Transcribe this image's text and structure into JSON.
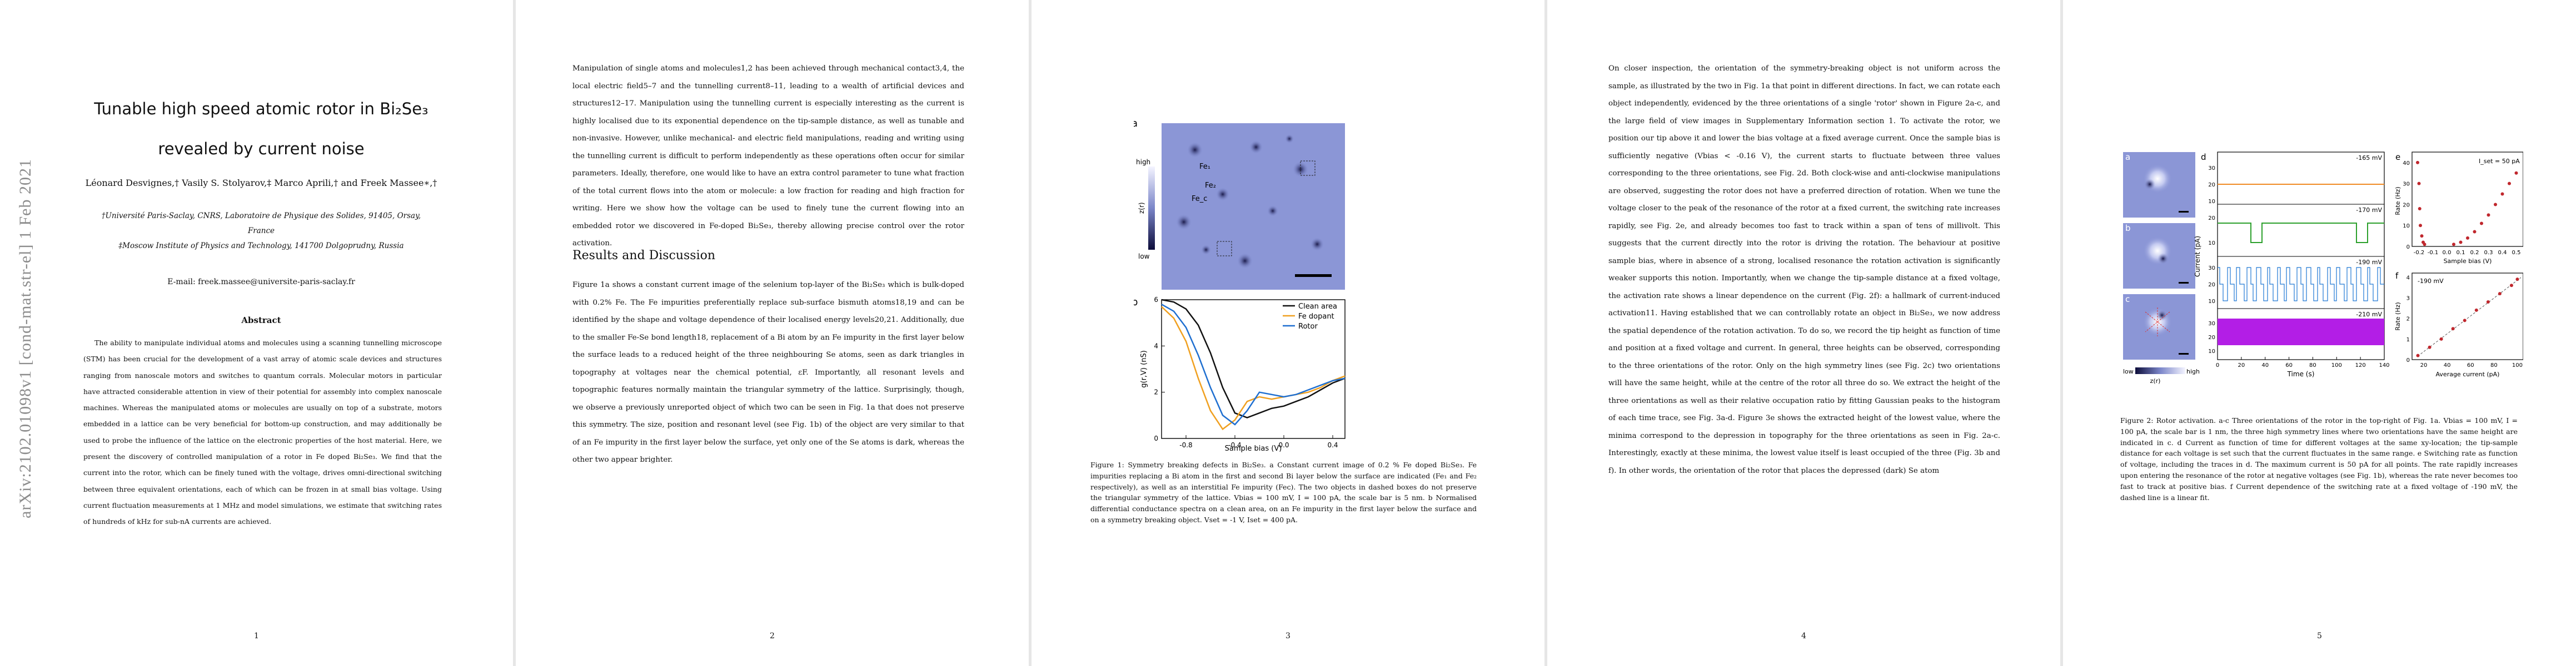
{
  "pages": [
    {
      "number": "1"
    },
    {
      "number": "2"
    },
    {
      "number": "3"
    },
    {
      "number": "4"
    },
    {
      "number": "5"
    }
  ],
  "arxiv_stamp": "arXiv:2102.01098v1  [cond-mat.str-el]  1 Feb 2021",
  "title_line1": "Tunable high speed atomic rotor in Bi₂Se₃",
  "title_line2": "revealed by current noise",
  "authors": "Léonard Desvignes,† Vasily S. Stolyarov,‡ Marco Aprili,† and Freek Massee∗,†",
  "affiliations": [
    "†Université Paris-Saclay, CNRS, Laboratoire de Physique des Solides, 91405, Orsay,",
    "France",
    "‡Moscow Institute of Physics and Technology, 141700 Dolgoprudny, Russia"
  ],
  "email": "E-mail: freek.massee@universite-paris-saclay.fr",
  "abstract_title": "Abstract",
  "abstract": "The ability to manipulate individual atoms and molecules using a scanning tunnelling microscope (STM) has been crucial for the development of a vast array of atomic scale devices and structures ranging from nanoscale motors and switches to quantum corrals. Molecular motors in particular have attracted considerable attention in view of their potential for assembly into complex nanoscale machines. Whereas the manipulated atoms or molecules are usually on top of a substrate, motors embedded in a lattice can be very beneficial for bottom-up construction, and may additionally be used to probe the influence of the lattice on the electronic properties of the host material. Here, we present the discovery of controlled manipulation of a rotor in Fe doped Bi₂Se₃. We find that the current into the rotor, which can be finely tuned with the voltage, drives omni-directional switching between three equivalent orientations, each of which can be frozen in at small bias voltage. Using current fluctuation measurements at 1 MHz and model simulations, we estimate that switching rates of hundreds of kHz for sub-nA currents are achieved.",
  "p2_para1": "Manipulation of single atoms and molecules1,2 has been achieved through mechanical contact3,4, the local electric field5–7 and the tunnelling current8–11, leading to a wealth of artificial devices and structures12–17. Manipulation using the tunnelling current is especially interesting as the current is highly localised due to its exponential dependence on the tip-sample distance, as well as tunable and non-invasive. However, unlike mechanical- and electric field manipulations, reading and writing using the tunnelling current is difficult to perform independently as these operations often occur for similar parameters. Ideally, therefore, one would like to have an extra control parameter to tune what fraction of the total current flows into the atom or molecule: a low fraction for reading and high fraction for writing. Here we show how the voltage can be used to finely tune the current flowing into an embedded rotor we discovered in Fe-doped Bi₂Se₃, thereby allowing precise control over the rotor activation.",
  "p2_section": "Results and Discussion",
  "p2_para2": "Figure 1a shows a constant current image of the selenium top-layer of the Bi₂Se₃ which is bulk-doped with 0.2% Fe. The Fe impurities preferentially replace sub-surface bismuth atoms18,19 and can be identified by the shape and voltage dependence of their localised energy levels20,21. Additionally, due to the smaller Fe-Se bond length18, replacement of a Bi atom by an Fe impurity in the first layer below the surface leads to a reduced height of the three neighbouring Se atoms, seen as dark triangles in topography at voltages near the chemical potential, εF. Importantly, all resonant levels and topographic features normally maintain the triangular symmetry of the lattice. Surprisingly, though, we observe a previously unreported object of which two can be seen in Fig. 1a that does not preserve this symmetry. The size, position and resonant level (see Fig. 1b) of the object are very similar to that of an Fe impurity in the first layer below the surface, yet only one of the Se atoms is dark, whereas the other two appear brighter.",
  "fig1": {
    "panel_a": "a",
    "panel_b": "b",
    "colorbar_high": "high",
    "colorbar_low": "low",
    "colorbar_label": "z(r)",
    "labels": [
      "Fe₁",
      "Fe₂",
      "Fe_c"
    ],
    "ylabel": "g(r,V) (nS)",
    "xlabel": "Sample bias (V)",
    "legend": [
      "Clean area",
      "Fe dopant",
      "Rotor"
    ],
    "colors": {
      "clean": "#111111",
      "fe": "#f0a020",
      "rotor": "#1f6fd0"
    }
  },
  "chart_data": {
    "type": "line",
    "title": "",
    "xlabel": "Sample bias (V)",
    "ylabel": "g(r,V) (nS)",
    "xlim": [
      -1.0,
      0.5
    ],
    "ylim": [
      0,
      6
    ],
    "xticks": [
      "-0.8",
      "-0.4",
      "0.0",
      "0.4"
    ],
    "yticks": [
      "0",
      "2",
      "4",
      "6"
    ],
    "x": [
      -1.0,
      -0.9,
      -0.8,
      -0.7,
      -0.6,
      -0.5,
      -0.4,
      -0.3,
      -0.2,
      -0.1,
      0.0,
      0.1,
      0.2,
      0.3,
      0.4,
      0.5
    ],
    "series": [
      {
        "name": "Clean area",
        "values": [
          6.0,
          5.9,
          5.6,
          4.9,
          3.7,
          2.2,
          1.1,
          0.9,
          1.1,
          1.3,
          1.4,
          1.6,
          1.8,
          2.1,
          2.4,
          2.6
        ]
      },
      {
        "name": "Fe dopant",
        "values": [
          5.7,
          5.2,
          4.2,
          2.6,
          1.2,
          0.4,
          0.8,
          1.6,
          1.8,
          1.7,
          1.8,
          1.9,
          2.0,
          2.2,
          2.5,
          2.7
        ]
      },
      {
        "name": "Rotor",
        "values": [
          5.8,
          5.5,
          4.8,
          3.6,
          2.2,
          1.0,
          0.6,
          1.2,
          2.0,
          1.9,
          1.8,
          1.9,
          2.1,
          2.3,
          2.5,
          2.6
        ]
      }
    ]
  },
  "fig1_caption": "Figure 1: Symmetry breaking defects in Bi₂Se₃. a Constant current image of 0.2 % Fe doped Bi₂Se₃. Fe impurities replacing a Bi atom in the first and second Bi layer below the surface are indicated (Fe₁ and Fe₂ respectively), as well as an interstitial Fe impurity (Feᴄ). The two objects in dashed boxes do not preserve the triangular symmetry of the lattice. Vbias = 100 mV, I = 100 pA, the scale bar is 5 nm. b Normalised differential conductance spectra on a clean area, on an Fe impurity in the first layer below the surface and on a symmetry breaking object. Vset = -1 V, Iset = 400 pA.",
  "p4_text": "On closer inspection, the orientation of the symmetry-breaking object is not uniform across the sample, as illustrated by the two in Fig. 1a that point in different directions. In fact, we can rotate each object independently, evidenced by the three orientations of a single 'rotor' shown in Figure 2a-c, and the large field of view images in Supplementary Information section 1. To activate the rotor, we position our tip above it and lower the bias voltage at a fixed average current. Once the sample bias is sufficiently negative (Vbias < -0.16 V), the current starts to fluctuate between three values corresponding to the three orientations, see Fig. 2d. Both clock-wise and anti-clockwise manipulations are observed, suggesting the rotor does not have a preferred direction of rotation. When we tune the voltage closer to the peak of the resonance of the rotor at a fixed current, the switching rate increases rapidly, see Fig. 2e, and already becomes too fast to track within a span of tens of millivolt. This suggests that the current directly into the rotor is driving the rotation. The behaviour at positive sample bias, where in absence of a strong, localised resonance the rotation activation is significantly weaker supports this notion. Importantly, when we change the tip-sample distance at a fixed voltage, the activation rate shows a linear dependence on the current (Fig. 2f): a hallmark of current-induced activation11. Having established that we can controllably rotate an object in Bi₂Se₃, we now address the spatial dependence of the rotation activation. To do so, we record the tip height as function of time and position at a fixed voltage and current. In general, three heights can be observed, corresponding to the three orientations of the rotor. Only on the high symmetry lines (see Fig. 2c) two orientations will have the same height, while at the centre of the rotor all three do so. We extract the height of the three orientations as well as their relative occupation ratio by fitting Gaussian peaks to the histogram of each time trace, see Fig. 3a-d. Figure 3e shows the extracted height of the lowest value, where the minima correspond to the depression in topography for the three orientations as seen in Fig. 2a-c. Interestingly, exactly at these minima, the lowest value itself is least occupied of the three (Fig. 3b and f). In other words, the orientation of the rotor that places the depressed (dark) Se atom",
  "fig2": {
    "panels": [
      "a",
      "b",
      "c",
      "d",
      "e",
      "f"
    ],
    "colorbar_low": "low",
    "colorbar_high": "high",
    "colorbar_label": "z(r)",
    "d_labels": [
      "-165 mV",
      "-170 mV",
      "-190 mV",
      "-210 mV"
    ],
    "d_ylabel": "Current (pA)",
    "d_xlabel": "Time (s)",
    "d_xticks": [
      "0",
      "20",
      "40",
      "60",
      "80",
      "100",
      "120",
      "140"
    ],
    "d_yticks": [
      "30",
      "20",
      "10",
      "20",
      "10",
      "30",
      "20",
      "10",
      "30",
      "20",
      "10"
    ],
    "e_label": "I_set = 50 pA",
    "e_ylabel": "Rate (Hz)",
    "e_xlabel": "Sample bias (V)",
    "e_xticks": [
      "-0.2",
      "-0.1",
      "0.0",
      "0.1",
      "0.2",
      "0.3",
      "0.4",
      "0.5"
    ],
    "e_yticks": [
      "0",
      "10",
      "20",
      "30",
      "40"
    ],
    "f_label": "-190 mV",
    "f_ylabel": "Rate (Hz)",
    "f_xlabel": "Average current (pA)",
    "f_xticks": [
      "20",
      "40",
      "60",
      "80",
      "100"
    ],
    "f_yticks": [
      "0",
      "1",
      "2",
      "3",
      "4"
    ],
    "colors": {
      "orange": "#f08a24",
      "green": "#2ca02c",
      "blue": "#1f77d4",
      "purple": "#b31ee6",
      "red": "#c0272d"
    }
  },
  "fig2_caption": "Figure 2: Rotor activation. a-c Three orientations of the rotor in the top-right of Fig. 1a. Vbias = 100 mV, I = 100 pA, the scale bar is 1 nm, the three high symmetry lines where two orientations have the same height are indicated in c. d Current as function of time for different voltages at the same xy-location; the tip-sample distance for each voltage is set such that the current fluctuates in the same range. e Switching rate as function of voltage, including the traces in d. The maximum current is 50 pA for all points. The rate rapidly increases upon entering the resonance of the rotor at negative voltages (see Fig. 1b), whereas the rate never becomes too fast to track at positive bias. f Current dependence of the switching rate at a fixed voltage of -190 mV, the dashed line is a linear fit."
}
